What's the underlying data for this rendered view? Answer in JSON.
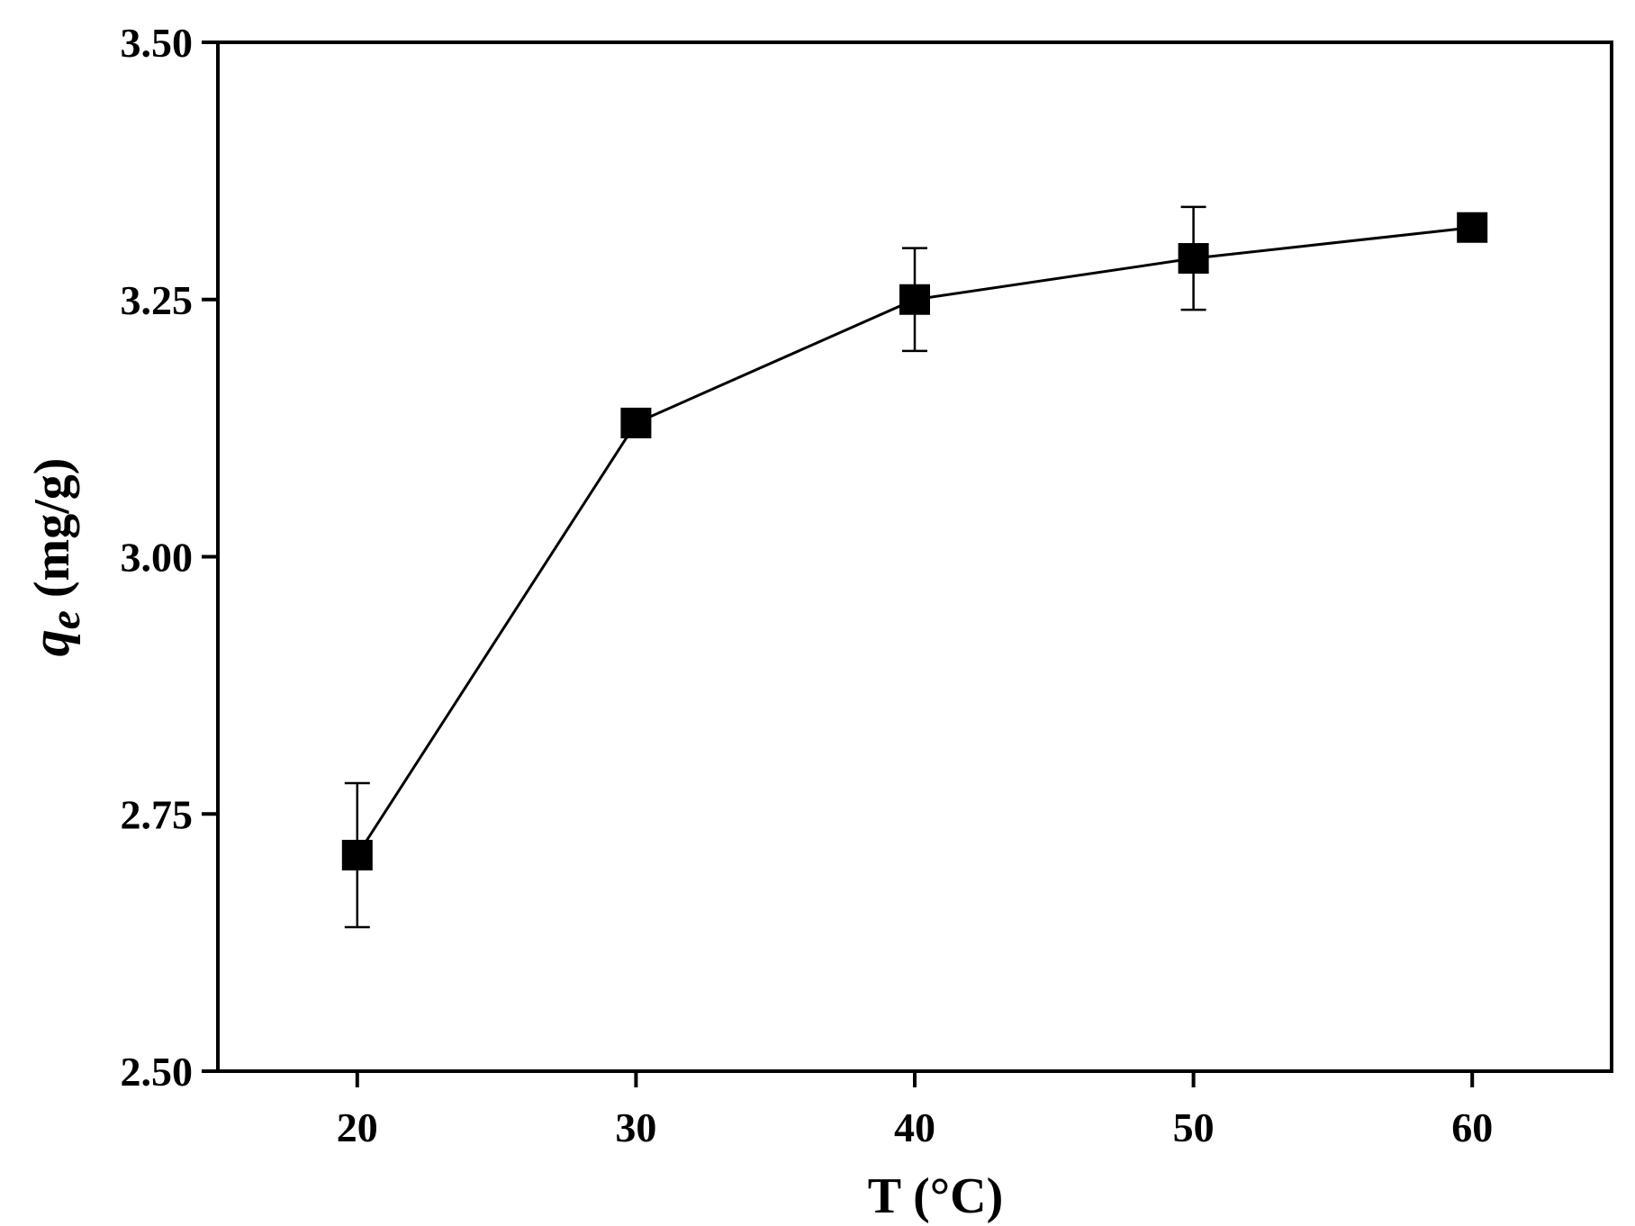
{
  "chart_data": {
    "type": "line",
    "xlabel": "T (°C)",
    "ylabel_symbol": "q",
    "ylabel_subscript": "e",
    "ylabel_unit": " (mg/g)",
    "xlim": [
      15,
      65
    ],
    "ylim": [
      2.5,
      3.5
    ],
    "x_ticks": [
      20,
      30,
      40,
      50,
      60
    ],
    "y_ticks": [
      2.5,
      2.75,
      3.0,
      3.25,
      3.5
    ],
    "x_tick_labels": [
      "20",
      "30",
      "40",
      "50",
      "60"
    ],
    "y_tick_labels": [
      "2.50",
      "2.75",
      "3.00",
      "3.25",
      "3.50"
    ],
    "grid": false,
    "marker": "square",
    "color": "#000000",
    "series": [
      {
        "x": [
          20,
          30,
          40,
          50,
          60
        ],
        "y": [
          2.71,
          3.13,
          3.25,
          3.29,
          3.32
        ],
        "err_low": [
          2.64,
          null,
          3.2,
          3.24,
          null
        ],
        "err_high": [
          2.78,
          null,
          3.3,
          3.34,
          null
        ]
      }
    ]
  }
}
